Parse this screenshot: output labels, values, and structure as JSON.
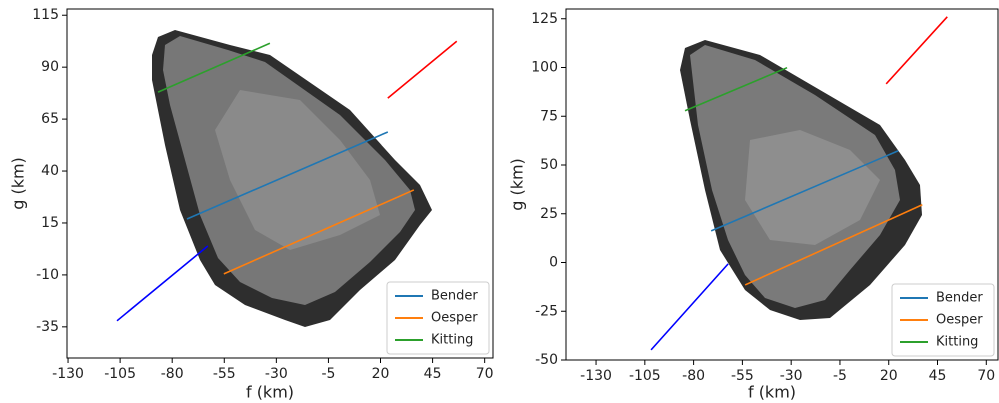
{
  "chart_data": [
    {
      "type": "line",
      "xlabel": "f (km)",
      "ylabel": "g (km)",
      "xlim": [
        -130.5,
        74
      ],
      "ylim": [
        -50,
        118
      ],
      "xticks": [
        -130,
        -105,
        -80,
        -55,
        -30,
        -5,
        20,
        45,
        70
      ],
      "yticks": [
        -35,
        -10,
        15,
        40,
        65,
        90,
        115
      ],
      "legend": "lower right",
      "series": [
        {
          "name": "Bender",
          "color": "#1f77b4",
          "x": [
            -72.9,
            23.5
          ],
          "values": [
            16.9,
            58.8
          ]
        },
        {
          "name": "Oesper",
          "color": "#ff7f0e",
          "x": [
            -55.2,
            36
          ],
          "values": [
            -9.5,
            30.9
          ]
        },
        {
          "name": "Kitting",
          "color": "#2ca02c",
          "x": [
            -86.8,
            -33.1
          ],
          "values": [
            78,
            101.5
          ]
        },
        {
          "color": "#ff0000",
          "x": [
            23.5,
            56.6
          ],
          "values": [
            75.1,
            102.5
          ]
        },
        {
          "color": "#0000ff",
          "x": [
            -106.5,
            -62.9
          ],
          "values": [
            -32.1,
            3.9
          ]
        }
      ]
    },
    {
      "type": "line",
      "xlabel": "f (km)",
      "ylabel": "g (km)",
      "xlim": [
        -145.4,
        76
      ],
      "ylim": [
        -50,
        130
      ],
      "xticks": [
        -130,
        -105,
        -80,
        -55,
        -30,
        -5,
        20,
        45,
        70
      ],
      "yticks": [
        -50,
        -25,
        0,
        25,
        50,
        75,
        100,
        125
      ],
      "legend": "lower right",
      "series": [
        {
          "name": "Bender",
          "color": "#1f77b4",
          "x": [
            -71,
            24.9
          ],
          "values": [
            16.2,
            57.3
          ]
        },
        {
          "name": "Oesper",
          "color": "#ff7f0e",
          "x": [
            -53.6,
            37.2
          ],
          "values": [
            -11.5,
            29.6
          ]
        },
        {
          "name": "Kitting",
          "color": "#2ca02c",
          "x": [
            -84.4,
            -32.1
          ],
          "values": [
            77.8,
            99.9
          ]
        },
        {
          "color": "#ff0000",
          "x": [
            18.7,
            50
          ],
          "values": [
            91.6,
            126
          ]
        },
        {
          "color": "#0000ff",
          "x": [
            -101.8,
            -62.3
          ],
          "values": [
            -44.8,
            -0.7
          ]
        }
      ]
    }
  ]
}
